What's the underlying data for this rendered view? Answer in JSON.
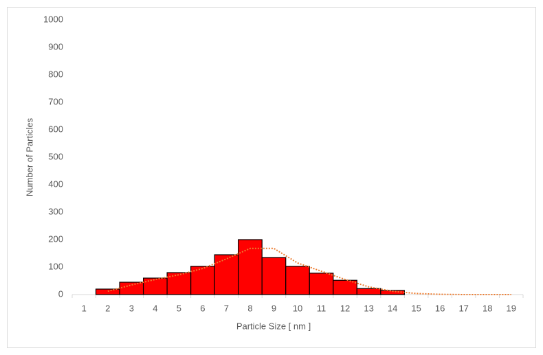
{
  "chart_data": {
    "type": "bar",
    "x_label": "Particle Size [ nm ]",
    "y_label": "Number of Particles",
    "categories": [
      "1",
      "2",
      "3",
      "4",
      "5",
      "6",
      "7",
      "8",
      "9",
      "10",
      "11",
      "12",
      "13",
      "14",
      "15",
      "16",
      "17",
      "18",
      "19"
    ],
    "series": [
      {
        "type": "bar",
        "color": "#ff0000",
        "values": [
          null,
          20,
          45,
          60,
          80,
          103,
          145,
          200,
          135,
          103,
          78,
          52,
          22,
          15,
          null,
          null,
          null,
          null,
          null
        ]
      },
      {
        "type": "line",
        "color": "#ed7d31",
        "values": [
          null,
          12,
          35,
          55,
          72,
          95,
          130,
          168,
          168,
          115,
          85,
          55,
          28,
          12,
          4,
          1,
          0,
          0,
          0
        ]
      }
    ],
    "ylim": [
      0,
      1000
    ],
    "yticks": [
      0,
      100,
      200,
      300,
      400,
      500,
      600,
      700,
      800,
      900,
      1000
    ],
    "grid": false
  }
}
